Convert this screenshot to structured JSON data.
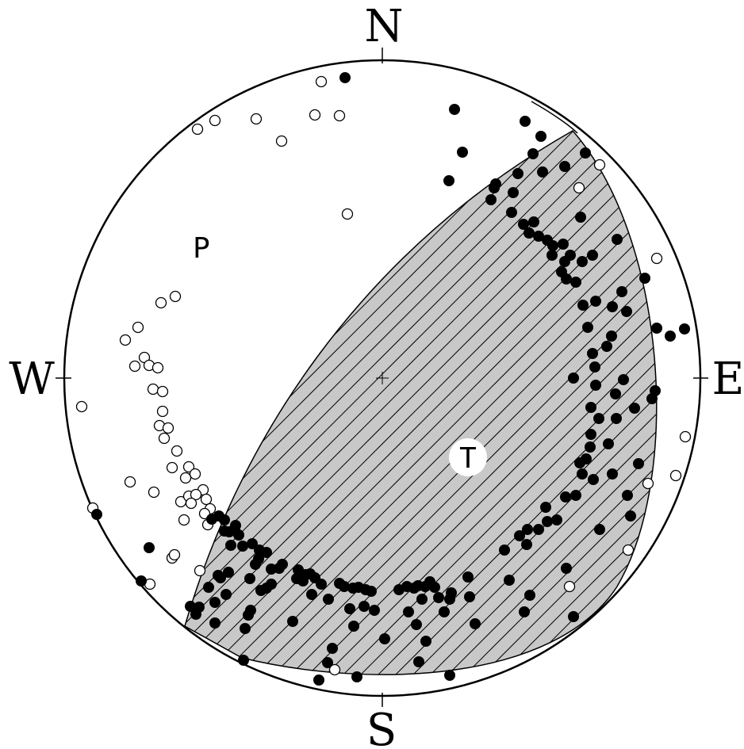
{
  "directions": {
    "north": "N",
    "south": "S",
    "east": "E",
    "west": "W"
  },
  "axes": {
    "p_label": "P",
    "t_label": "T"
  },
  "colors": {
    "shade": "#c8c8c8",
    "ink": "#000000",
    "paper": "#ffffff"
  }
}
